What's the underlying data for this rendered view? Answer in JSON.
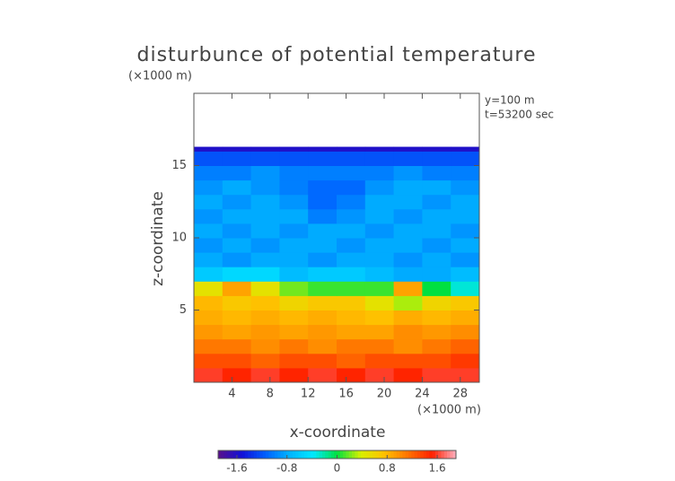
{
  "chart_data": {
    "type": "heatmap",
    "title": "disturbunce of potential temperature",
    "y_unit": "(×1000 m)",
    "x_unit": "(×1000 m)",
    "annotations": [
      "y=100 m",
      "t=53200 sec"
    ],
    "xlabel": "x-coordinate",
    "ylabel": "z-coordinate",
    "xlim": [
      0,
      30
    ],
    "ylim": [
      0,
      20
    ],
    "xticks": [
      4,
      8,
      12,
      16,
      20,
      24,
      28
    ],
    "yticks": [
      5,
      10,
      15
    ],
    "x": [
      0,
      3,
      6,
      9,
      12,
      15,
      18,
      21,
      24,
      27,
      30
    ],
    "z": [
      0,
      1,
      2,
      3,
      4,
      5,
      6,
      7,
      8,
      9,
      10,
      11,
      12,
      13,
      14,
      15,
      16,
      16.3
    ],
    "values": [
      [
        1.6,
        1.5,
        1.6,
        1.5,
        1.6,
        1.5,
        1.6,
        1.5,
        1.6,
        1.6
      ],
      [
        1.3,
        1.3,
        1.2,
        1.3,
        1.3,
        1.2,
        1.3,
        1.3,
        1.3,
        1.4
      ],
      [
        1.1,
        1.1,
        1.0,
        1.1,
        1.0,
        1.1,
        1.1,
        1.0,
        1.1,
        1.2
      ],
      [
        0.95,
        0.9,
        0.95,
        0.9,
        0.95,
        0.9,
        0.9,
        1.0,
        0.95,
        1.0
      ],
      [
        0.85,
        0.8,
        0.85,
        0.8,
        0.85,
        0.8,
        0.75,
        0.85,
        0.8,
        0.85
      ],
      [
        0.8,
        0.7,
        0.75,
        0.6,
        0.7,
        0.7,
        0.5,
        0.3,
        0.6,
        0.7
      ],
      [
        0.5,
        0.9,
        0.5,
        0.2,
        0.1,
        0.1,
        0.1,
        0.9,
        0.0,
        -0.3
      ],
      [
        -0.6,
        -0.5,
        -0.5,
        -0.7,
        -0.6,
        -0.6,
        -0.7,
        -0.8,
        -0.8,
        -0.7
      ],
      [
        -0.8,
        -0.9,
        -0.8,
        -0.8,
        -0.9,
        -0.8,
        -0.8,
        -0.9,
        -0.8,
        -0.9
      ],
      [
        -0.9,
        -0.8,
        -0.9,
        -0.8,
        -0.8,
        -0.9,
        -0.8,
        -0.8,
        -0.9,
        -0.8
      ],
      [
        -0.8,
        -0.9,
        -0.8,
        -0.9,
        -0.8,
        -0.8,
        -0.9,
        -0.8,
        -0.8,
        -0.9
      ],
      [
        -0.9,
        -0.8,
        -0.8,
        -0.8,
        -1.0,
        -0.9,
        -0.8,
        -0.9,
        -0.8,
        -0.8
      ],
      [
        -0.8,
        -0.9,
        -0.8,
        -0.9,
        -1.1,
        -1.0,
        -0.8,
        -0.8,
        -0.9,
        -0.8
      ],
      [
        -0.9,
        -0.8,
        -0.9,
        -1.0,
        -1.1,
        -1.1,
        -0.9,
        -0.8,
        -0.8,
        -0.9
      ],
      [
        -1.0,
        -1.0,
        -0.9,
        -1.0,
        -1.0,
        -1.0,
        -1.0,
        -0.9,
        -1.0,
        -1.0
      ],
      [
        -1.2,
        -1.2,
        -1.2,
        -1.2,
        -1.2,
        -1.2,
        -1.2,
        -1.2,
        -1.2,
        -1.2
      ],
      [
        -1.6,
        -1.6,
        -1.6,
        -1.6,
        -1.6,
        -1.6,
        -1.6,
        -1.6,
        -1.6,
        -1.6
      ]
    ],
    "clim": [
      -1.9,
      1.9
    ],
    "cticks": [
      -1.6,
      -0.8,
      0,
      0.8,
      1.6
    ],
    "colors": [
      "#5a0f8a",
      "#1010d8",
      "#0060ff",
      "#00b4ff",
      "#00e8ff",
      "#00e040",
      "#d8f000",
      "#ffc000",
      "#ff7000",
      "#ff2000",
      "#ffb0c0"
    ]
  }
}
